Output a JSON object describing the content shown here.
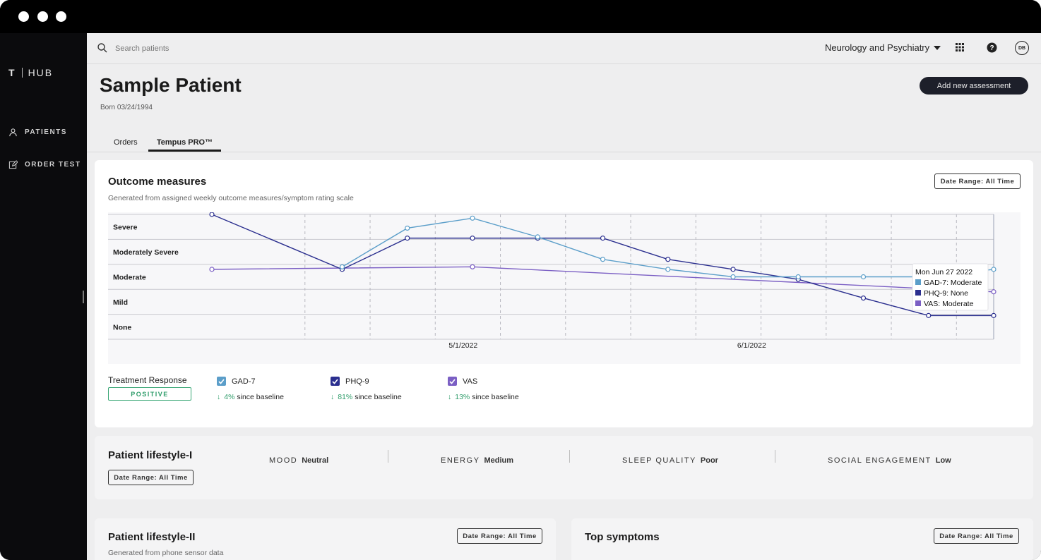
{
  "app": {
    "logo_mark": "T",
    "logo_text": "HUB"
  },
  "sidebar": {
    "items": [
      {
        "label": "PATIENTS",
        "icon": "person-icon"
      },
      {
        "label": "ORDER TEST",
        "icon": "edit-icon"
      }
    ]
  },
  "topbar": {
    "search_placeholder": "Search patients",
    "department": "Neurology and Psychiatry",
    "avatar_initials": "DB"
  },
  "patient": {
    "name": "Sample Patient",
    "born": "Born 03/24/1994",
    "add_button": "Add new assessment"
  },
  "tabs": [
    {
      "label": "Orders",
      "active": false
    },
    {
      "label": "Tempus PRO™",
      "active": true
    }
  ],
  "outcome": {
    "title": "Outcome measures",
    "subtitle": "Generated from assigned weekly outcome measures/symptom rating scale",
    "range_button": "Date Range: All Time",
    "treatment_label": "Treatment Response",
    "treatment_value": "POSITIVE",
    "legend": [
      {
        "name": "GAD-7",
        "pct": "4%",
        "suffix": "since baseline",
        "color": "#5b9ec9"
      },
      {
        "name": "PHQ-9",
        "pct": "81%",
        "suffix": "since baseline",
        "color": "#2b2f8f"
      },
      {
        "name": "VAS",
        "pct": "13%",
        "suffix": "since baseline",
        "color": "#7b5fc4"
      }
    ],
    "tooltip": {
      "title": "Mon Jun 27 2022",
      "rows": [
        "GAD-7: Moderate",
        "PHQ-9: None",
        "VAS: Moderate"
      ]
    }
  },
  "chart_data": {
    "type": "line",
    "y_categories": [
      "None",
      "Mild",
      "Moderate",
      "Moderately Severe",
      "Severe"
    ],
    "x_tick_labels": [
      "5/1/2022",
      "6/1/2022"
    ],
    "x_tick_dates": [
      "2022-05-01",
      "2022-06-01"
    ],
    "ylim": [
      0,
      5
    ],
    "grid": true,
    "series": [
      {
        "name": "GAD-7",
        "color": "#5b9ec9",
        "x": [
          "2022-04-11",
          "2022-04-18",
          "2022-04-25",
          "2022-05-02",
          "2022-05-09",
          "2022-05-16",
          "2022-05-23",
          "2022-05-30",
          "2022-06-06",
          "2022-06-13",
          "2022-06-20",
          "2022-06-27"
        ],
        "y": [
          null,
          2.9,
          4.45,
          4.85,
          4.1,
          3.2,
          2.8,
          2.5,
          2.5,
          2.5,
          2.5,
          2.8
        ]
      },
      {
        "name": "PHQ-9",
        "color": "#2b2f8f",
        "x": [
          "2022-04-04",
          "2022-04-18",
          "2022-04-25",
          "2022-05-02",
          "2022-05-09",
          "2022-05-16",
          "2022-05-23",
          "2022-05-30",
          "2022-06-06",
          "2022-06-13",
          "2022-06-20",
          "2022-06-27"
        ],
        "y": [
          5.0,
          2.8,
          4.05,
          4.05,
          4.05,
          4.05,
          3.2,
          2.8,
          2.4,
          1.65,
          0.95,
          0.95
        ]
      },
      {
        "name": "VAS",
        "color": "#7b5fc4",
        "x": [
          "2022-04-04",
          "2022-05-02",
          "2022-06-27"
        ],
        "y": [
          2.8,
          2.9,
          1.9
        ]
      }
    ]
  },
  "lifestyle1": {
    "title": "Patient lifestyle-I",
    "range_button": "Date Range: All Time",
    "metrics": [
      {
        "label": "MOOD",
        "value": "Neutral"
      },
      {
        "label": "ENERGY",
        "value": "Medium"
      },
      {
        "label": "SLEEP QUALITY",
        "value": "Poor"
      },
      {
        "label": "SOCIAL ENGAGEMENT",
        "value": "Low"
      }
    ]
  },
  "lifestyle2": {
    "title": "Patient lifestyle-II",
    "subtitle": "Generated from phone sensor data",
    "range_button": "Date Range: All Time"
  },
  "symptoms": {
    "title": "Top symptoms",
    "range_button": "Date Range: All Time"
  }
}
